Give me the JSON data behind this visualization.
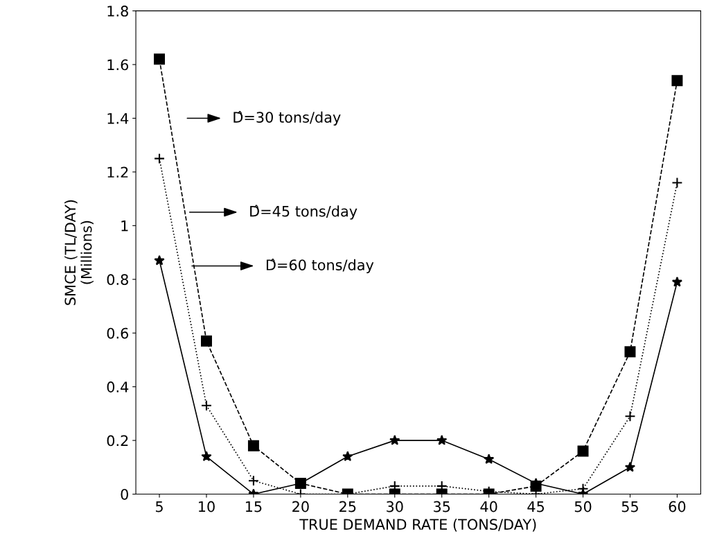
{
  "chart_data": {
    "type": "line",
    "xlabel": "TRUE DEMAND RATE (TONS/DAY)",
    "ylabel": "SMCE (TL/DAY)\n(Millions)",
    "categories": [
      "5",
      "10",
      "15",
      "20",
      "25",
      "30",
      "35",
      "40",
      "45",
      "50",
      "55",
      "60"
    ],
    "annotations": [
      "D̂=30 tons/day",
      "D̂=45 tons/day",
      "D̂=60 tons/day"
    ],
    "ylim": [
      0,
      1.8
    ],
    "yticks": [
      0,
      0.2,
      0.4,
      0.6,
      0.8,
      1,
      1.2,
      1.4,
      1.6,
      1.8
    ],
    "grid": false,
    "legend": false,
    "series": [
      {
        "color": "#000000",
        "marker": "square",
        "line_style": "dashed",
        "values": [
          1.62,
          0.57,
          0.18,
          0.04,
          0.0,
          0.0,
          0.0,
          0.0,
          0.03,
          0.16,
          0.53,
          1.54
        ]
      },
      {
        "color": "#000000",
        "marker": "cross",
        "line_style": "dotted",
        "values": [
          1.25,
          0.33,
          0.05,
          0.0,
          0.0,
          0.03,
          0.03,
          0.01,
          0.0,
          0.02,
          0.29,
          1.16
        ]
      },
      {
        "color": "#000000",
        "marker": "star",
        "line_style": "solid",
        "values": [
          0.87,
          0.14,
          0.0,
          0.04,
          0.14,
          0.2,
          0.2,
          0.13,
          0.04,
          0.0,
          0.1,
          0.79
        ]
      }
    ]
  }
}
